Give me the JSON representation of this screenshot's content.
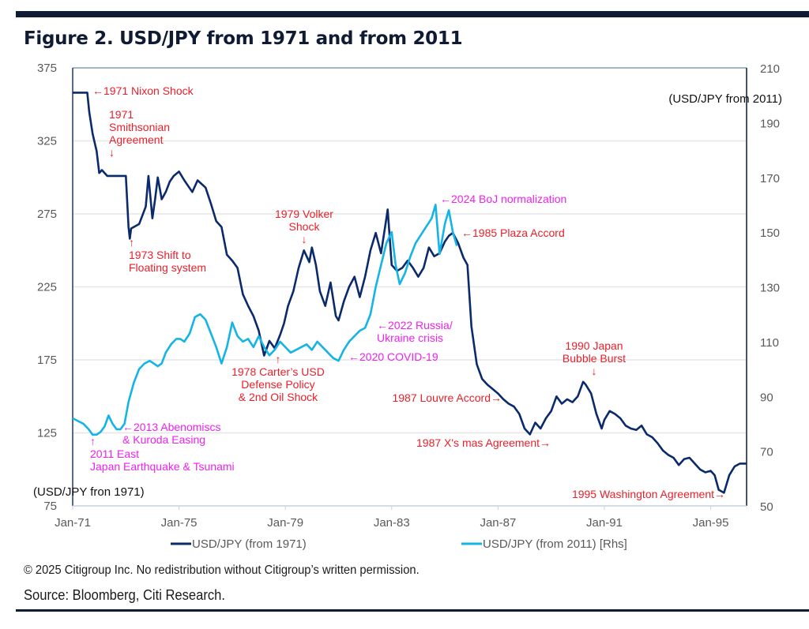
{
  "header": {
    "title": "Figure 2. USD/JPY from 1971 and from 2011"
  },
  "footer": {
    "copyright": "© 2025 Citigroup Inc. No redistribution without Citigroup’s written permission.",
    "source": "Source: Bloomberg, Citi Research."
  },
  "colors": {
    "series_1971": "#0b2a6b",
    "series_2011": "#14b4e6",
    "annotation_red": "#e8202a",
    "annotation_magenta": "#ee22ee",
    "grid": "#e6e6e6",
    "frame": "#0f1a33"
  },
  "chart_data": {
    "type": "line",
    "title": "Figure 2. USD/JPY from 1971 and from 2011",
    "xlabel": "",
    "ylabel": "(USD/JPY fron 1971)",
    "ylabel_right": "(USD/JPY from 2011)",
    "x_ticks": [
      "Jan-71",
      "Jan-75",
      "Jan-79",
      "Jan-83",
      "Jan-87",
      "Jan-91",
      "Jan-95"
    ],
    "x_range_years": [
      1971.0,
      1996.35
    ],
    "ylim": [
      75,
      375
    ],
    "yticks": [
      75,
      125,
      175,
      225,
      275,
      325,
      375
    ],
    "ylim_right": [
      50,
      210
    ],
    "yticks_right": [
      50,
      70,
      90,
      110,
      130,
      150,
      170,
      190,
      210
    ],
    "grid": true,
    "legend_position": "bottom",
    "series": [
      {
        "name": "USD/JPY (from 1971)",
        "axis": "left",
        "x": [
          1971.0,
          1971.55,
          1971.62,
          1971.75,
          1971.9,
          1972.0,
          1972.1,
          1972.3,
          1972.5,
          1972.7,
          1973.0,
          1973.1,
          1973.15,
          1973.2,
          1973.3,
          1973.5,
          1973.75,
          1973.85,
          1974.0,
          1974.1,
          1974.2,
          1974.35,
          1974.5,
          1974.65,
          1974.8,
          1975.0,
          1975.2,
          1975.5,
          1975.7,
          1976.0,
          1976.2,
          1976.4,
          1976.6,
          1976.8,
          1977.0,
          1977.2,
          1977.4,
          1977.6,
          1977.8,
          1978.0,
          1978.2,
          1978.4,
          1978.6,
          1978.8,
          1978.95,
          1979.1,
          1979.3,
          1979.5,
          1979.7,
          1979.9,
          1980.0,
          1980.15,
          1980.3,
          1980.5,
          1980.7,
          1980.9,
          1981.0,
          1981.2,
          1981.4,
          1981.6,
          1981.8,
          1982.0,
          1982.2,
          1982.4,
          1982.6,
          1982.8,
          1982.85,
          1983.0,
          1983.2,
          1983.4,
          1983.6,
          1983.8,
          1984.0,
          1984.2,
          1984.4,
          1984.6,
          1984.8,
          1985.0,
          1985.15,
          1985.3,
          1985.5,
          1985.7,
          1985.85,
          1986.0,
          1986.2,
          1986.4,
          1986.6,
          1986.8,
          1987.0,
          1987.2,
          1987.4,
          1987.6,
          1987.8,
          1988.0,
          1988.2,
          1988.4,
          1988.6,
          1988.8,
          1989.0,
          1989.2,
          1989.4,
          1989.6,
          1989.8,
          1990.0,
          1990.2,
          1990.3,
          1990.5,
          1990.7,
          1990.9,
          1991.0,
          1991.2,
          1991.4,
          1991.6,
          1991.8,
          1992.0,
          1992.2,
          1992.4,
          1992.6,
          1992.8,
          1993.0,
          1993.2,
          1993.4,
          1993.6,
          1993.8,
          1994.0,
          1994.2,
          1994.4,
          1994.6,
          1994.8,
          1995.0,
          1995.15,
          1995.3,
          1995.5,
          1995.7,
          1995.9,
          1996.1,
          1996.35
        ],
        "values": [
          358,
          358,
          345,
          330,
          318,
          303,
          305,
          301,
          301,
          301,
          301,
          266,
          258,
          265,
          266,
          268,
          280,
          301,
          272,
          285,
          300,
          285,
          290,
          297,
          301,
          304,
          298,
          290,
          298,
          293,
          282,
          270,
          266,
          247,
          243,
          238,
          220,
          212,
          205,
          195,
          178,
          188,
          183,
          192,
          200,
          212,
          222,
          238,
          250,
          242,
          252,
          240,
          222,
          212,
          228,
          205,
          202,
          215,
          225,
          232,
          218,
          232,
          250,
          262,
          248,
          272,
          278,
          240,
          236,
          238,
          243,
          238,
          232,
          238,
          252,
          246,
          248,
          256,
          260,
          262,
          255,
          245,
          240,
          198,
          172,
          162,
          158,
          155,
          152,
          148,
          145,
          143,
          138,
          128,
          124,
          132,
          128,
          135,
          140,
          150,
          145,
          148,
          146,
          150,
          160,
          158,
          152,
          138,
          128,
          134,
          140,
          138,
          135,
          130,
          128,
          127,
          130,
          124,
          122,
          118,
          113,
          110,
          108,
          103,
          107,
          108,
          104,
          100,
          98,
          99,
          96,
          86,
          84,
          96,
          102,
          104,
          104
        ]
      },
      {
        "name": "USD/JPY (from 2011) [Rhs]",
        "axis": "right",
        "note": "Plotted on same horizontal span (2011–2025 aligned to Jan-71 start)",
        "x": [
          1971.0,
          1971.2,
          1971.4,
          1971.6,
          1971.75,
          1971.9,
          1972.05,
          1972.2,
          1972.35,
          1972.5,
          1972.65,
          1972.8,
          1972.95,
          1973.1,
          1973.3,
          1973.5,
          1973.7,
          1973.9,
          1974.05,
          1974.2,
          1974.35,
          1974.5,
          1974.7,
          1974.9,
          1975.05,
          1975.2,
          1975.4,
          1975.6,
          1975.8,
          1976.0,
          1976.2,
          1976.4,
          1976.6,
          1976.8,
          1977.0,
          1977.2,
          1977.4,
          1977.6,
          1977.8,
          1978.0,
          1978.2,
          1978.4,
          1978.6,
          1978.8,
          1979.0,
          1979.2,
          1979.4,
          1979.6,
          1979.8,
          1980.0,
          1980.2,
          1980.4,
          1980.6,
          1980.8,
          1981.0,
          1981.2,
          1981.4,
          1981.6,
          1981.8,
          1982.0,
          1982.2,
          1982.4,
          1982.6,
          1982.8,
          1983.0,
          1983.15,
          1983.3,
          1983.5,
          1983.7,
          1983.9,
          1984.1,
          1984.3,
          1984.5,
          1984.65,
          1984.8,
          1985.0,
          1985.15,
          1985.3,
          1985.45
        ],
        "values": [
          82,
          81,
          80,
          78,
          76,
          76,
          77,
          79,
          83,
          80,
          78,
          78,
          80,
          88,
          95,
          100,
          102,
          103,
          102,
          101,
          102,
          106,
          109,
          111,
          111,
          110,
          113,
          119,
          120,
          118,
          113,
          108,
          102,
          108,
          117,
          112,
          110,
          111,
          108,
          112,
          108,
          105,
          107,
          110,
          108,
          106,
          107,
          108,
          109,
          107,
          110,
          108,
          106,
          104,
          103,
          107,
          110,
          112,
          114,
          115,
          120,
          130,
          138,
          146,
          150,
          138,
          131,
          135,
          141,
          146,
          149,
          152,
          155,
          160,
          142,
          153,
          158,
          150,
          145
        ]
      }
    ],
    "annotations": [
      {
        "text": [
          "←1971 Nixon Shock"
        ],
        "color": "red"
      },
      {
        "text": [
          "1971",
          "Smithsonian",
          "Agreement",
          "↓"
        ],
        "color": "red"
      },
      {
        "text": [
          "↑",
          "1973 Shift to",
          "Floating system"
        ],
        "color": "red"
      },
      {
        "text": [
          "1979 Volker",
          "Shock",
          "↓"
        ],
        "color": "red"
      },
      {
        "text": [
          "↑",
          "1978 Carter’s USD",
          "Defense Policy",
          "& 2nd Oil Shock"
        ],
        "color": "red"
      },
      {
        "text": [
          "←1985 Plaza Accord"
        ],
        "color": "red"
      },
      {
        "text": [
          "1987 Louvre Accord→"
        ],
        "color": "red"
      },
      {
        "text": [
          "1987 X's mas Agreement→"
        ],
        "color": "red"
      },
      {
        "text": [
          "1990 Japan",
          "Bubble Burst",
          "↓"
        ],
        "color": "red"
      },
      {
        "text": [
          "1995 Washington Agreement→"
        ],
        "color": "red"
      },
      {
        "text": [
          "←2024 BoJ normalization"
        ],
        "color": "magenta"
      },
      {
        "text": [
          "←2022 Russia/",
          "Ukraine crisis"
        ],
        "color": "magenta"
      },
      {
        "text": [
          "←2020 COVID-19"
        ],
        "color": "magenta"
      },
      {
        "text": [
          "←2013 Abenomiscs",
          "& Kuroda Easing"
        ],
        "color": "magenta"
      },
      {
        "text": [
          "↑",
          "2011 East",
          "Japan Earthquake & Tsunami"
        ],
        "color": "magenta"
      }
    ]
  }
}
